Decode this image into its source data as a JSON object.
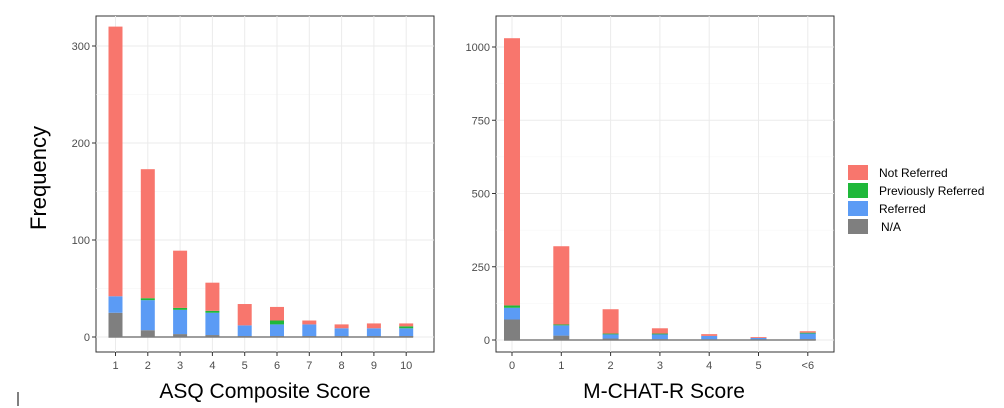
{
  "ylabel": "Frequency",
  "legend": {
    "placement": "right",
    "items": [
      {
        "label": "Not Referred",
        "color": "#F8766D"
      },
      {
        "label": "Previously Referred",
        "color": "#1FB83A"
      },
      {
        "label": "Referred",
        "color": "#5B9BF5"
      },
      {
        "label": "N/A",
        "color": "#7F7F7F"
      }
    ]
  },
  "chart_data": [
    {
      "type": "bar",
      "stacked": true,
      "xlabel": "ASQ Composite Score",
      "ylabel": "Frequency",
      "ylim": [
        0,
        335
      ],
      "yticks": [
        0,
        100,
        200,
        300
      ],
      "grid": true,
      "categories": [
        "1",
        "2",
        "3",
        "4",
        "5",
        "6",
        "7",
        "8",
        "9",
        "10"
      ],
      "series": [
        {
          "name": "N/A",
          "values": [
            25,
            7,
            3,
            2,
            1,
            1,
            1,
            1,
            1,
            1
          ]
        },
        {
          "name": "Referred",
          "values": [
            17,
            31,
            25,
            23,
            11,
            12,
            12,
            8,
            8,
            8
          ]
        },
        {
          "name": "Previously Referred",
          "values": [
            0,
            2,
            2,
            2,
            0,
            4,
            0,
            0,
            0,
            2
          ]
        },
        {
          "name": "Not Referred",
          "values": [
            278,
            133,
            59,
            29,
            22,
            14,
            4,
            4,
            5,
            3
          ]
        }
      ]
    },
    {
      "type": "bar",
      "stacked": true,
      "xlabel": "M-CHAT-R Score",
      "ylabel": "",
      "ylim": [
        0,
        1060
      ],
      "yticks": [
        0,
        250,
        500,
        750,
        1000
      ],
      "grid": true,
      "categories": [
        "0",
        "1",
        "2",
        "3",
        "4",
        "5",
        "<6"
      ],
      "series": [
        {
          "name": "N/A",
          "values": [
            70,
            15,
            5,
            3,
            2,
            1,
            3
          ]
        },
        {
          "name": "Referred",
          "values": [
            40,
            35,
            15,
            18,
            12,
            6,
            20
          ]
        },
        {
          "name": "Previously Referred",
          "values": [
            8,
            3,
            2,
            1,
            0,
            0,
            2
          ]
        },
        {
          "name": "Not Referred",
          "values": [
            912,
            267,
            83,
            18,
            6,
            3,
            5
          ]
        }
      ]
    }
  ]
}
